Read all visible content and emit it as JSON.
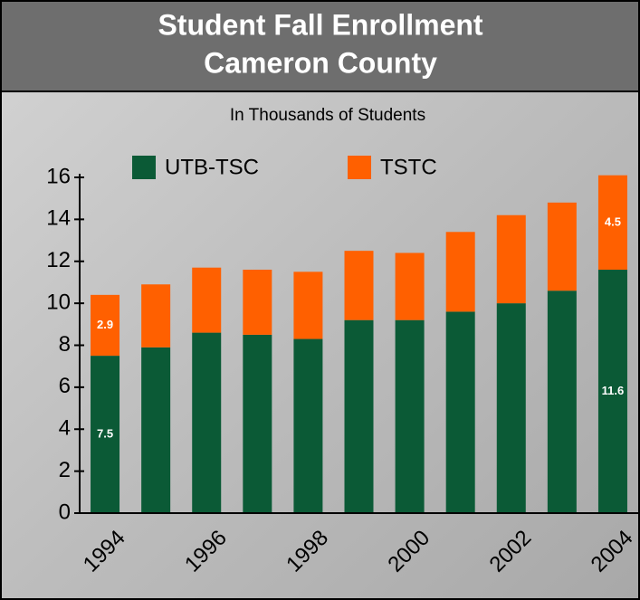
{
  "chart_data": {
    "type": "stacked_bar",
    "title": "Student Fall Enrollment",
    "subtitle": "Cameron County",
    "y_axis_label": "In Thousands of Students",
    "categories": [
      "1994",
      null,
      "1996",
      null,
      "1998",
      null,
      "2000",
      null,
      "2002",
      null,
      "2004"
    ],
    "series": [
      {
        "name": "UTB-TSC",
        "color": "#0b5a36",
        "values": [
          7.5,
          7.9,
          8.6,
          8.5,
          8.3,
          9.2,
          9.2,
          9.6,
          10.0,
          10.6,
          11.6
        ],
        "value_labels": [
          "7.5",
          null,
          null,
          null,
          null,
          null,
          null,
          null,
          null,
          null,
          "11.6"
        ]
      },
      {
        "name": "TSTC",
        "color": "#ff6000",
        "values": [
          2.9,
          3.0,
          3.1,
          3.1,
          3.2,
          3.3,
          3.2,
          3.8,
          4.2,
          4.2,
          4.5
        ],
        "value_labels": [
          "2.9",
          null,
          null,
          null,
          null,
          null,
          null,
          null,
          null,
          null,
          "4.5"
        ]
      }
    ],
    "ylim": [
      0,
      16
    ],
    "yticks": [
      0,
      2,
      4,
      6,
      8,
      10,
      12,
      14,
      16
    ],
    "grid": false
  }
}
